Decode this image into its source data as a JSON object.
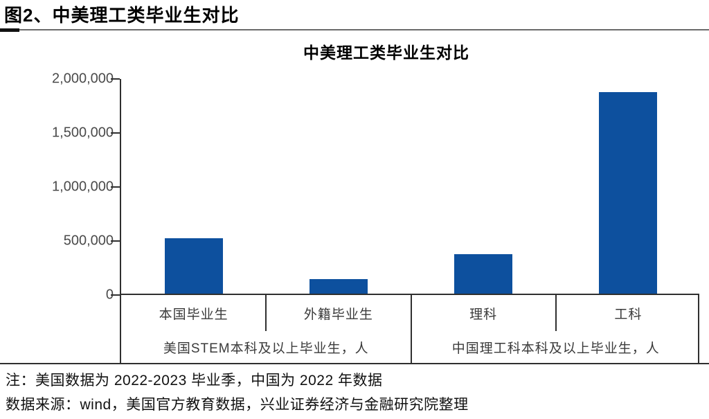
{
  "header": {
    "figure_label": "图2、中美理工类毕业生对比"
  },
  "chart_data": {
    "type": "bar",
    "title": "中美理工类毕业生对比",
    "categories": [
      "本国毕业生",
      "外籍毕业生",
      "理科",
      "工科"
    ],
    "values": [
      510000,
      135000,
      365000,
      1865000
    ],
    "groups": [
      {
        "label": "美国STEM本科及以上毕业生，人",
        "span": [
          "本国毕业生",
          "外籍毕业生"
        ]
      },
      {
        "label": "中国理工科本科及以上毕业生，人",
        "span": [
          "理科",
          "工科"
        ]
      }
    ],
    "ylim": [
      0,
      2000000
    ],
    "yticks": [
      {
        "value": 0,
        "label": "0"
      },
      {
        "value": 500000,
        "label": "500,000"
      },
      {
        "value": 1000000,
        "label": "1,000,000"
      },
      {
        "value": 1500000,
        "label": "1,500,000"
      },
      {
        "value": 2000000,
        "label": "2,000,000"
      }
    ],
    "bar_color": "#0d509e",
    "axis_color": "#2f2f2f",
    "grid": false,
    "legend": false
  },
  "footnotes": {
    "note": "注：美国数据为 2022-2023 毕业季，中国为 2022 年数据",
    "source": "数据来源：wind，美国官方教育数据，兴业证券经济与金融研究院整理"
  }
}
